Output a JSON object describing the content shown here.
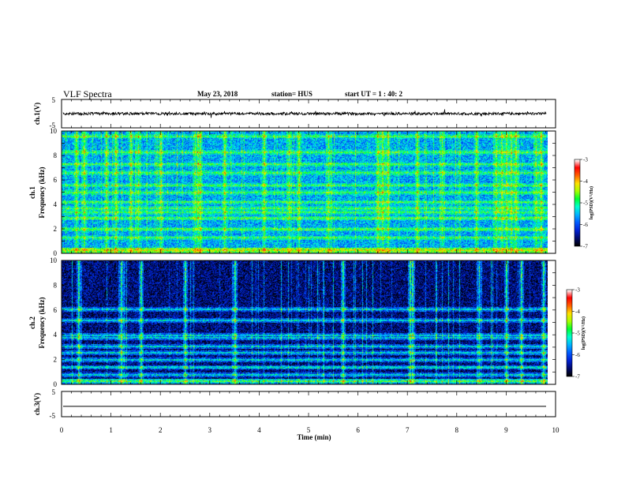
{
  "chart_data": {
    "type": "heatmap",
    "title": "VLF Spectra",
    "date": "May 23, 2018",
    "station": "station= HUS",
    "start_ut": "start  UT  =   1 : 40: 2",
    "xlabel": "Time  (min)",
    "x_ticks": [
      "0",
      "1",
      "2",
      "3",
      "4",
      "5",
      "6",
      "7",
      "8",
      "9",
      "10"
    ],
    "xlim": [
      0,
      10
    ],
    "panels": [
      {
        "id": "ch1-waveform",
        "type": "line",
        "ylabel": "ch.1(V)",
        "ylim": [
          -5,
          5
        ],
        "y_ticks": [
          "5",
          "-5"
        ],
        "baseline": 0,
        "noise_amplitude_v": 0.6
      },
      {
        "id": "ch1-spectrogram",
        "type": "heatmap",
        "ylabel_top": "ch.1",
        "ylabel": "Frequency  (kHz)",
        "ylim": [
          0,
          10
        ],
        "y_ticks": [
          "0",
          "2",
          "4",
          "6",
          "8",
          "10"
        ],
        "colorbar_label": "log(PSD)(V²/Hz)",
        "colorbar_ticks": [
          "-3",
          "-4",
          "-5",
          "-6",
          "-7"
        ],
        "bands_khz": [
          0.3,
          1.3,
          2.0,
          2.9,
          3.4,
          3.7,
          4.2,
          5.0,
          5.6,
          6.6,
          7.3,
          8.3,
          9.6
        ],
        "bursts_min": [
          0.3,
          0.45,
          0.9,
          1.1,
          1.4,
          1.55,
          2.0,
          2.7,
          2.75,
          2.8,
          3.3,
          4.1,
          4.6,
          4.8,
          5.4,
          6.4,
          6.5,
          6.6,
          7.2,
          7.7,
          8.4,
          8.8,
          8.9,
          9.0,
          9.1,
          9.2,
          9.6,
          9.7
        ],
        "level_background": -5.6,
        "level_band": -4.9,
        "level_burst": -4.6
      },
      {
        "id": "ch2-spectrogram",
        "type": "heatmap",
        "ylabel_top": "ch.2",
        "ylabel": "Frequency  (kHz)",
        "ylim": [
          0,
          10
        ],
        "y_ticks": [
          "0",
          "2",
          "4",
          "6",
          "8",
          "10"
        ],
        "colorbar_label": "log(PSD)(V²/Hz)",
        "colorbar_ticks": [
          "-3",
          "-4",
          "-5",
          "-6",
          "-7"
        ],
        "bands_khz": [
          0.3,
          0.8,
          1.4,
          2.0,
          2.6,
          3.1,
          3.8,
          4.0,
          5.2,
          6.1
        ],
        "bursts_min": [
          0.35,
          1.2,
          1.6,
          2.5,
          3.5,
          5.7,
          7.05,
          7.1,
          8.45,
          9.0,
          9.3,
          9.75
        ],
        "level_background": -6.6,
        "level_band": -5.4,
        "level_burst": -5.0
      },
      {
        "id": "ch3-waveform",
        "type": "line",
        "ylabel": "ch.3(V)",
        "ylim": [
          -5,
          5
        ],
        "y_ticks": [
          "5",
          "-5"
        ],
        "baseline": -0.9,
        "noise_amplitude_v": 0
      }
    ],
    "colormap": [
      "#000000",
      "#000a6e",
      "#0022d6",
      "#005cff",
      "#00b4ff",
      "#00ffd0",
      "#00ff30",
      "#a8ff00",
      "#ffe000",
      "#ff6000",
      "#ff0000",
      "#ffffff"
    ],
    "colorbar_range": [
      -7,
      -3
    ]
  }
}
